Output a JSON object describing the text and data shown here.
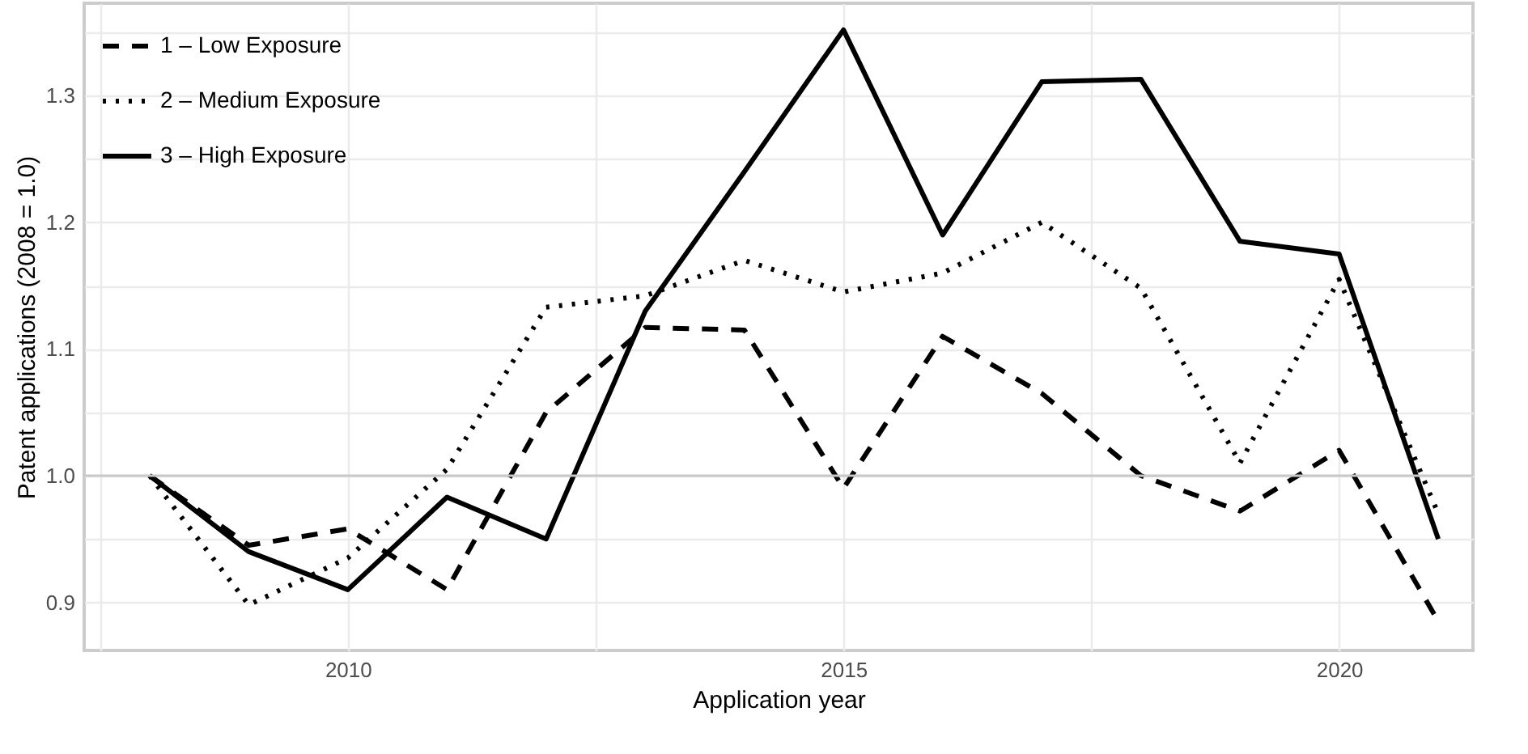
{
  "chart_data": {
    "type": "line",
    "xlabel": "Application year",
    "ylabel": "Patent applications (2008 = 1.0)",
    "x": [
      2008,
      2009,
      2010,
      2011,
      2012,
      2013,
      2014,
      2015,
      2016,
      2017,
      2018,
      2019,
      2020,
      2021
    ],
    "series": [
      {
        "name": "1 – Low Exposure",
        "color": "#000000",
        "line_style": "dashed",
        "values": [
          1.0,
          0.945,
          0.958,
          0.91,
          1.05,
          1.117,
          1.115,
          0.99,
          1.11,
          1.065,
          1.0,
          0.972,
          1.02,
          0.885
        ]
      },
      {
        "name": "2 – Medium Exposure",
        "color": "#000000",
        "line_style": "dotted",
        "values": [
          1.0,
          0.898,
          0.935,
          1.005,
          1.133,
          1.142,
          1.17,
          1.145,
          1.16,
          1.2,
          1.148,
          1.01,
          1.155,
          0.97
        ]
      },
      {
        "name": "3 – High Exposure",
        "color": "#000000",
        "line_style": "solid",
        "values": [
          1.0,
          0.94,
          0.91,
          0.983,
          0.95,
          1.13,
          1.24,
          1.352,
          1.19,
          1.311,
          1.313,
          1.185,
          1.175,
          0.95
        ]
      }
    ],
    "xlim": [
      2007.34,
      2021.35
    ],
    "xticks": [
      {
        "value": 2007.5,
        "label": null
      },
      2010,
      {
        "value": 2012.5,
        "label": null
      },
      2015,
      {
        "value": 2017.5,
        "label": null
      },
      2020
    ],
    "ylim": [
      0.862,
      1.373
    ],
    "yticks": [
      0.9,
      {
        "value": 0.95,
        "label": null
      },
      {
        "value": 1.0,
        "label": "1.0"
      },
      {
        "value": 1.05,
        "label": null
      },
      1.1,
      {
        "value": 1.15,
        "label": null
      },
      1.2,
      {
        "value": 1.25,
        "label": null
      },
      1.3,
      {
        "value": 1.35,
        "label": null
      }
    ],
    "ref_lines": [
      {
        "axis": "y",
        "value": 1.0,
        "color": "#c8c8c8"
      }
    ],
    "grid": true,
    "legend": "top left"
  }
}
